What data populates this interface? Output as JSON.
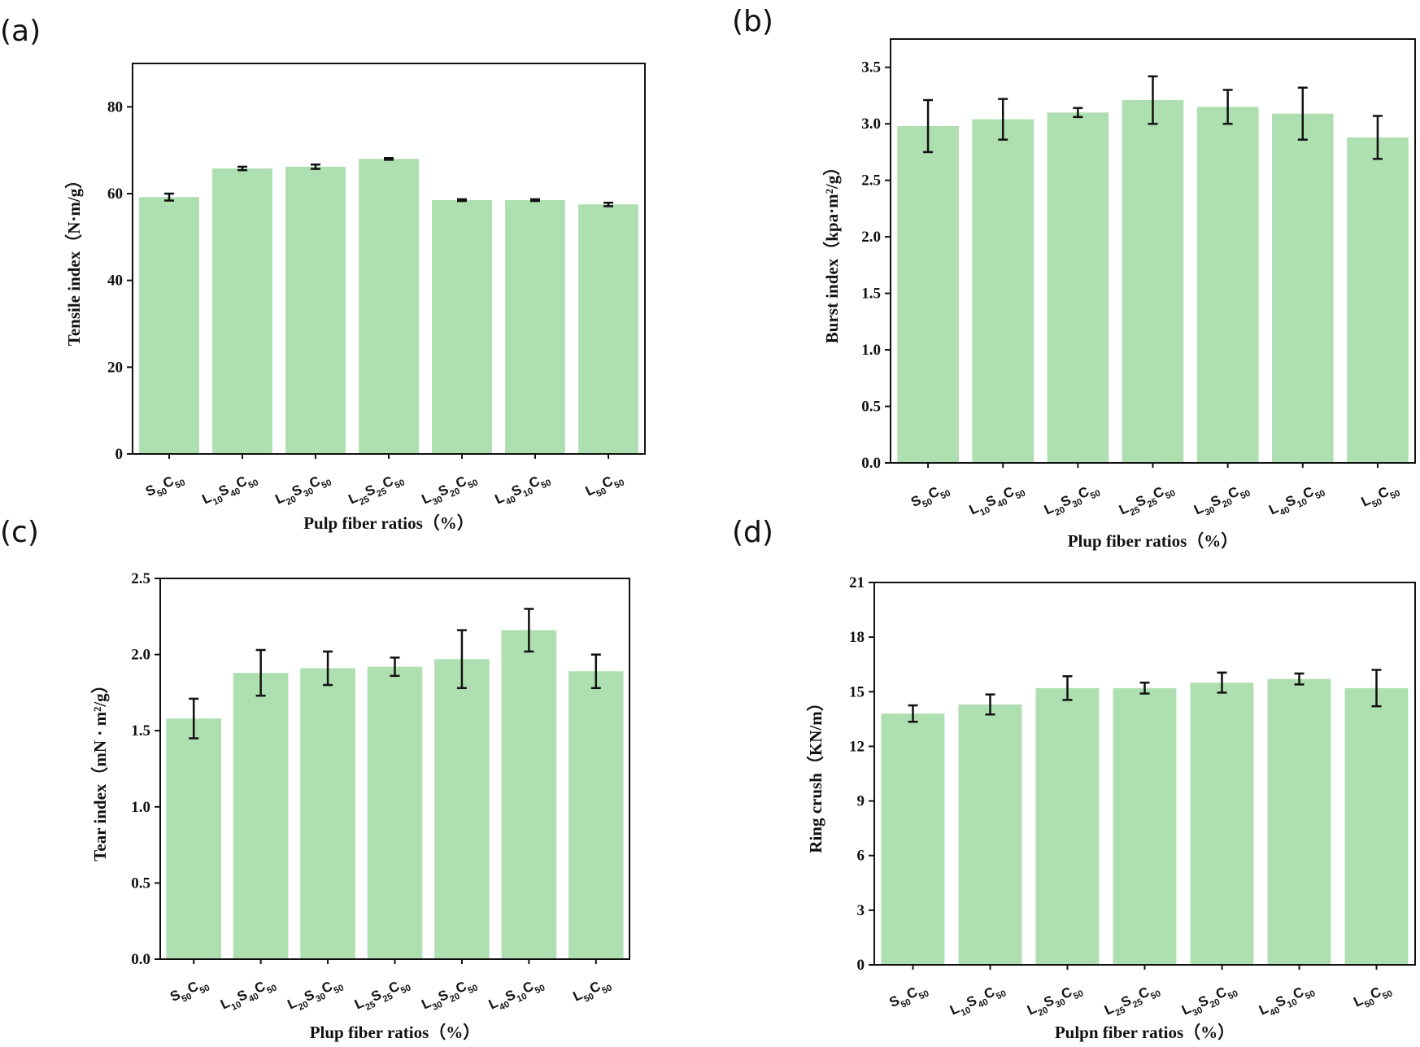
{
  "colors": {
    "bar": "#aedfb0",
    "axis": "#111111",
    "error_bar": "#111111"
  },
  "chart_data": [
    {
      "type": "bar",
      "panel_label": "(a)",
      "ylabel": "Tensile  index（N·m/g）",
      "xlabel": "Pulp fiber ratios（%）",
      "ylim": [
        0,
        90
      ],
      "yticks": [
        0,
        20,
        40,
        60,
        80
      ],
      "ytick_decimals": 0,
      "categories": [
        {
          "parts": [
            [
              "S",
              "50"
            ],
            [
              "C",
              "50"
            ]
          ]
        },
        {
          "parts": [
            [
              "L",
              "10"
            ],
            [
              "S",
              "40"
            ],
            [
              "C",
              "50"
            ]
          ]
        },
        {
          "parts": [
            [
              "L",
              "20"
            ],
            [
              "S",
              "30"
            ],
            [
              "C",
              "50"
            ]
          ]
        },
        {
          "parts": [
            [
              "L",
              "25"
            ],
            [
              "S",
              "25"
            ],
            [
              "C",
              "50"
            ]
          ]
        },
        {
          "parts": [
            [
              "L",
              "30"
            ],
            [
              "S",
              "20"
            ],
            [
              "C",
              "50"
            ]
          ]
        },
        {
          "parts": [
            [
              "L",
              "40"
            ],
            [
              "S",
              "10"
            ],
            [
              "C",
              "50"
            ]
          ]
        },
        {
          "parts": [
            [
              "L",
              "50"
            ],
            [
              "C",
              "50"
            ]
          ]
        }
      ],
      "values": [
        59.2,
        65.8,
        66.2,
        68.0,
        58.5,
        58.5,
        57.5
      ],
      "errors": [
        0.8,
        0.4,
        0.5,
        0.2,
        0.2,
        0.2,
        0.4
      ],
      "grid": false
    },
    {
      "type": "bar",
      "panel_label": "(b)",
      "ylabel": "Burst  index（kpa·m²/g）",
      "xlabel": "Plup fiber ratios（%）",
      "ylim": [
        0,
        3.75
      ],
      "yticks": [
        0.0,
        0.5,
        1.0,
        1.5,
        2.0,
        2.5,
        3.0,
        3.5
      ],
      "ytick_decimals": 1,
      "categories": [
        {
          "parts": [
            [
              "S",
              "50"
            ],
            [
              "C",
              "50"
            ]
          ]
        },
        {
          "parts": [
            [
              "L",
              "10"
            ],
            [
              "S",
              "40"
            ],
            [
              "C",
              "50"
            ]
          ]
        },
        {
          "parts": [
            [
              "L",
              "20"
            ],
            [
              "S",
              "30"
            ],
            [
              "C",
              "50"
            ]
          ]
        },
        {
          "parts": [
            [
              "L",
              "25"
            ],
            [
              "S",
              "25"
            ],
            [
              "C",
              "50"
            ]
          ]
        },
        {
          "parts": [
            [
              "L",
              "30"
            ],
            [
              "S",
              "20"
            ],
            [
              "C",
              "50"
            ]
          ]
        },
        {
          "parts": [
            [
              "L",
              "40"
            ],
            [
              "S",
              "10"
            ],
            [
              "C",
              "50"
            ]
          ]
        },
        {
          "parts": [
            [
              "L",
              "50"
            ],
            [
              "C",
              "50"
            ]
          ]
        }
      ],
      "values": [
        2.98,
        3.04,
        3.1,
        3.21,
        3.15,
        3.09,
        2.88
      ],
      "errors": [
        0.23,
        0.18,
        0.04,
        0.21,
        0.15,
        0.23,
        0.19
      ],
      "grid": false
    },
    {
      "type": "bar",
      "panel_label": "(c)",
      "ylabel": "Tear index（mN · m²/g）",
      "xlabel": "Plup fiber ratios（%）",
      "ylim": [
        0,
        2.5
      ],
      "yticks": [
        0.0,
        0.5,
        1.0,
        1.5,
        2.0,
        2.5
      ],
      "ytick_decimals": 1,
      "categories": [
        {
          "parts": [
            [
              "S",
              "50"
            ],
            [
              "C",
              "50"
            ]
          ]
        },
        {
          "parts": [
            [
              "L",
              "10"
            ],
            [
              "S",
              "40"
            ],
            [
              "C",
              "50"
            ]
          ]
        },
        {
          "parts": [
            [
              "L",
              "20"
            ],
            [
              "S",
              "30"
            ],
            [
              "C",
              "50"
            ]
          ]
        },
        {
          "parts": [
            [
              "L",
              "25"
            ],
            [
              "S",
              "25"
            ],
            [
              "C",
              "50"
            ]
          ]
        },
        {
          "parts": [
            [
              "L",
              "30"
            ],
            [
              "S",
              "20"
            ],
            [
              "C",
              "50"
            ]
          ]
        },
        {
          "parts": [
            [
              "L",
              "40"
            ],
            [
              "S",
              "10"
            ],
            [
              "C",
              "50"
            ]
          ]
        },
        {
          "parts": [
            [
              "L",
              "50"
            ],
            [
              "C",
              "50"
            ]
          ]
        }
      ],
      "values": [
        1.58,
        1.88,
        1.91,
        1.92,
        1.97,
        2.16,
        1.89
      ],
      "errors": [
        0.13,
        0.15,
        0.11,
        0.06,
        0.19,
        0.14,
        0.11
      ],
      "grid": false
    },
    {
      "type": "bar",
      "panel_label": "(d)",
      "ylabel": "Ring  crush（KN/m）",
      "xlabel": "Pulpn fiber ratios（%）",
      "ylim": [
        0,
        21
      ],
      "yticks": [
        0,
        3,
        6,
        9,
        12,
        15,
        18,
        21
      ],
      "ytick_decimals": 0,
      "categories": [
        {
          "parts": [
            [
              "S",
              "50"
            ],
            [
              "C",
              "50"
            ]
          ]
        },
        {
          "parts": [
            [
              "L",
              "10"
            ],
            [
              "S",
              "40"
            ],
            [
              "C",
              "50"
            ]
          ]
        },
        {
          "parts": [
            [
              "L",
              "20"
            ],
            [
              "S",
              "30"
            ],
            [
              "C",
              "50"
            ]
          ]
        },
        {
          "parts": [
            [
              "L",
              "25"
            ],
            [
              "S",
              "25"
            ],
            [
              "C",
              "50"
            ]
          ]
        },
        {
          "parts": [
            [
              "L",
              "30"
            ],
            [
              "S",
              "20"
            ],
            [
              "C",
              "50"
            ]
          ]
        },
        {
          "parts": [
            [
              "L",
              "40"
            ],
            [
              "S",
              "10"
            ],
            [
              "C",
              "50"
            ]
          ]
        },
        {
          "parts": [
            [
              "L",
              "50"
            ],
            [
              "C",
              "50"
            ]
          ]
        }
      ],
      "values": [
        13.8,
        14.3,
        15.2,
        15.2,
        15.5,
        15.7,
        15.2
      ],
      "errors": [
        0.45,
        0.55,
        0.65,
        0.3,
        0.55,
        0.3,
        1.0
      ],
      "grid": false
    }
  ]
}
